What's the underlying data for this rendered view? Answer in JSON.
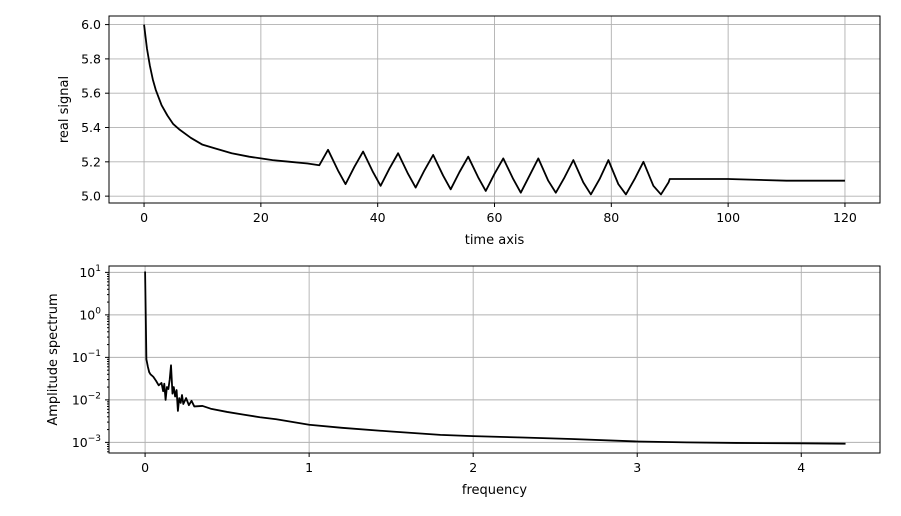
{
  "chart_data": [
    {
      "type": "line",
      "xlabel": "time axis",
      "ylabel": "real signal",
      "xlim": [
        -6,
        126
      ],
      "ylim": [
        4.96,
        6.05
      ],
      "x_ticks": [
        0,
        20,
        40,
        60,
        80,
        100,
        120
      ],
      "x_tick_labels": [
        "0",
        "20",
        "40",
        "60",
        "80",
        "100",
        "120"
      ],
      "y_ticks": [
        5.0,
        5.2,
        5.4,
        5.6,
        5.8,
        6.0
      ],
      "y_tick_labels": [
        "5.0",
        "5.2",
        "5.4",
        "5.6",
        "5.8",
        "6.0"
      ],
      "grid": true,
      "color": "#000000",
      "series": [
        {
          "x": [
            0,
            0.5,
            1,
            1.5,
            2,
            3,
            4,
            5,
            6,
            8,
            10,
            12,
            15,
            18,
            20,
            22,
            25,
            28,
            30,
            31.5,
            33.2,
            34.5,
            36,
            37.5,
            39.2,
            40.5,
            42,
            43.5,
            45.2,
            46.5,
            48,
            49.5,
            51.2,
            52.5,
            54,
            55.5,
            57.2,
            58.5,
            60,
            61.5,
            63.2,
            64.5,
            66,
            67.5,
            69.2,
            70.5,
            72,
            73.5,
            75.2,
            76.5,
            78,
            79.5,
            81.2,
            82.5,
            84,
            85.5,
            87.2,
            88.5,
            89.8,
            90,
            100,
            110,
            120
          ],
          "y": [
            6.0,
            5.86,
            5.76,
            5.68,
            5.62,
            5.53,
            5.47,
            5.42,
            5.39,
            5.34,
            5.3,
            5.28,
            5.25,
            5.23,
            5.22,
            5.21,
            5.2,
            5.19,
            5.18,
            5.27,
            5.15,
            5.07,
            5.17,
            5.26,
            5.14,
            5.06,
            5.16,
            5.25,
            5.13,
            5.05,
            5.15,
            5.24,
            5.12,
            5.04,
            5.14,
            5.23,
            5.11,
            5.03,
            5.13,
            5.22,
            5.1,
            5.02,
            5.12,
            5.22,
            5.09,
            5.02,
            5.11,
            5.21,
            5.08,
            5.01,
            5.1,
            5.21,
            5.07,
            5.01,
            5.1,
            5.2,
            5.06,
            5.01,
            5.08,
            5.1,
            5.1,
            5.09,
            5.09
          ]
        }
      ]
    },
    {
      "type": "line",
      "xlabel": "frequency",
      "ylabel": "Amplitude spectrum",
      "xlim": [
        -0.22,
        4.48
      ],
      "yscale": "log",
      "ylim_exponent": [
        -3.25,
        1.15
      ],
      "x_ticks": [
        0,
        1,
        2,
        3,
        4
      ],
      "x_tick_labels": [
        "0",
        "1",
        "2",
        "3",
        "4"
      ],
      "y_ticks": [
        10,
        1,
        0.1,
        0.01,
        0.001
      ],
      "y_tick_labels": [
        {
          "base": "10",
          "exp": "1"
        },
        {
          "base": "10",
          "exp": "0"
        },
        {
          "base": "10",
          "exp": "−1"
        },
        {
          "base": "10",
          "exp": "−2"
        },
        {
          "base": "10",
          "exp": "−3"
        }
      ],
      "grid": true,
      "color": "#000000",
      "series": [
        {
          "x": [
            0,
            0.008,
            0.017,
            0.025,
            0.033,
            0.05,
            0.067,
            0.083,
            0.1,
            0.11,
            0.117,
            0.125,
            0.133,
            0.142,
            0.15,
            0.158,
            0.167,
            0.175,
            0.183,
            0.192,
            0.2,
            0.208,
            0.217,
            0.225,
            0.233,
            0.25,
            0.267,
            0.283,
            0.3,
            0.35,
            0.4,
            0.5,
            0.6,
            0.7,
            0.8,
            1.0,
            1.2,
            1.5,
            1.8,
            2.0,
            2.3,
            2.6,
            3.0,
            3.3,
            3.6,
            4.0,
            4.27
          ],
          "y": [
            10.5,
            0.09,
            0.06,
            0.045,
            0.04,
            0.035,
            0.028,
            0.022,
            0.025,
            0.016,
            0.024,
            0.01,
            0.02,
            0.018,
            0.03,
            0.065,
            0.014,
            0.02,
            0.012,
            0.017,
            0.0055,
            0.011,
            0.0085,
            0.013,
            0.008,
            0.011,
            0.0075,
            0.0095,
            0.007,
            0.0072,
            0.0062,
            0.0052,
            0.0045,
            0.0039,
            0.0035,
            0.0026,
            0.0022,
            0.0018,
            0.0015,
            0.0014,
            0.0013,
            0.0012,
            0.00105,
            0.001,
            0.00097,
            0.00095,
            0.00093
          ]
        }
      ]
    }
  ]
}
